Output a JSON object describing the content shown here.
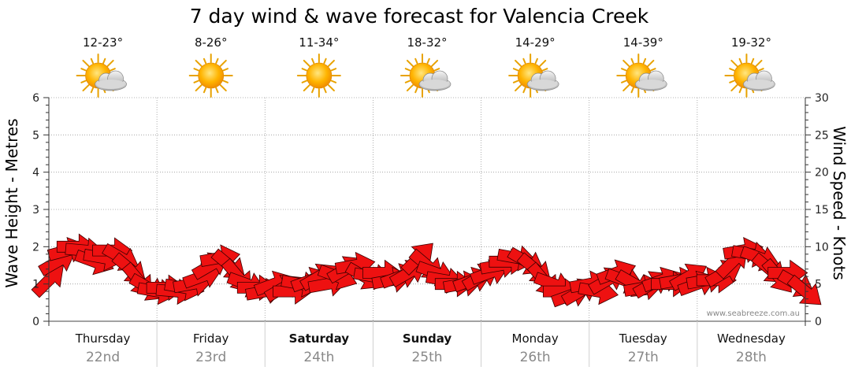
{
  "chart_data": {
    "type": "line",
    "title": "7 day wind & wave forecast for Valencia Creek",
    "ylabel_left": "Wave Height - Metres",
    "ylabel_right": "Wind Speed - Knots",
    "left_axis": {
      "min": 0,
      "max": 6,
      "ticks": [
        "0",
        "1",
        "2",
        "3",
        "4",
        "5",
        "6"
      ]
    },
    "right_axis": {
      "min": 0,
      "max": 30,
      "ticks": [
        "0",
        "5",
        "10",
        "15",
        "20",
        "25",
        "30"
      ]
    },
    "watermark": "www.seabreeze.com.au",
    "days": [
      {
        "name": "Thursday",
        "date": "22nd",
        "bold": false,
        "temp": "12-23°",
        "icon": "partly-cloudy-icon"
      },
      {
        "name": "Friday",
        "date": "23rd",
        "bold": false,
        "temp": "8-26°",
        "icon": "sunny-icon"
      },
      {
        "name": "Saturday",
        "date": "24th",
        "bold": true,
        "temp": "11-34°",
        "icon": "sunny-icon"
      },
      {
        "name": "Sunday",
        "date": "25th",
        "bold": true,
        "temp": "18-32°",
        "icon": "partly-cloudy-icon"
      },
      {
        "name": "Monday",
        "date": "26th",
        "bold": false,
        "temp": "14-29°",
        "icon": "partly-cloudy-icon"
      },
      {
        "name": "Tuesday",
        "date": "27th",
        "bold": false,
        "temp": "14-39°",
        "icon": "partly-cloudy-icon"
      },
      {
        "name": "Wednesday",
        "date": "28th",
        "bold": false,
        "temp": "19-32°",
        "icon": "partly-cloudy-icon"
      }
    ],
    "series": [
      {
        "name": "Wind Speed (knots) with direction arrows",
        "x_days": [
          0,
          0.08,
          0.17,
          0.25,
          0.33,
          0.42,
          0.5,
          0.58,
          0.67,
          0.75,
          0.83,
          0.92,
          1,
          1.08,
          1.17,
          1.25,
          1.33,
          1.42,
          1.5,
          1.58,
          1.67,
          1.75,
          1.83,
          1.92,
          2,
          2.08,
          2.17,
          2.25,
          2.33,
          2.42,
          2.5,
          2.58,
          2.67,
          2.75,
          2.83,
          2.92,
          3,
          3.08,
          3.17,
          3.25,
          3.33,
          3.42,
          3.5,
          3.58,
          3.67,
          3.75,
          3.83,
          3.92,
          4,
          4.08,
          4.17,
          4.25,
          4.33,
          4.42,
          4.5,
          4.58,
          4.67,
          4.75,
          4.83,
          4.92,
          5,
          5.08,
          5.17,
          5.25,
          5.33,
          5.42,
          5.5,
          5.58,
          5.67,
          5.75,
          5.83,
          5.92,
          6,
          6.08,
          6.17,
          6.25,
          6.33,
          6.42,
          6.5,
          6.58,
          6.67,
          6.75,
          6.83,
          6.92,
          7.0
        ],
        "values": [
          5.5,
          8.0,
          9.5,
          10.0,
          9.5,
          8.0,
          8.5,
          9.5,
          8.5,
          7.0,
          5.5,
          4.5,
          4.0,
          4.5,
          4.0,
          4.5,
          5.0,
          6.0,
          7.5,
          8.5,
          7.5,
          6.0,
          5.0,
          4.5,
          4.0,
          5.0,
          4.5,
          4.0,
          5.0,
          5.5,
          6.0,
          5.0,
          6.0,
          7.0,
          7.5,
          6.0,
          6.0,
          6.5,
          5.5,
          6.0,
          6.5,
          8.5,
          7.5,
          6.5,
          5.5,
          5.0,
          5.0,
          5.5,
          6.0,
          6.5,
          7.5,
          8.0,
          8.5,
          8.0,
          7.0,
          5.5,
          5.0,
          4.0,
          3.5,
          4.0,
          5.0,
          4.0,
          5.5,
          6.5,
          5.5,
          5.0,
          4.5,
          5.0,
          5.5,
          5.0,
          5.5,
          6.0,
          5.0,
          5.5,
          5.5,
          6.5,
          8.0,
          9.5,
          9.0,
          8.5,
          7.0,
          6.0,
          6.5,
          5.0,
          4.0
        ],
        "directions_deg": [
          45,
          60,
          75,
          90,
          95,
          110,
          100,
          90,
          120,
          130,
          140,
          120,
          100,
          90,
          95,
          100,
          80,
          70,
          60,
          80,
          130,
          140,
          110,
          90,
          80,
          70,
          60,
          90,
          100,
          70,
          60,
          80,
          110,
          60,
          80,
          120,
          100,
          90,
          80,
          70,
          60,
          45,
          130,
          110,
          100,
          90,
          80,
          70,
          60,
          70,
          80,
          90,
          100,
          120,
          130,
          140,
          110,
          90,
          70,
          60,
          80,
          100,
          60,
          70,
          110,
          120,
          80,
          60,
          70,
          90,
          80,
          60,
          70,
          80,
          90,
          60,
          45,
          80,
          100,
          110,
          130,
          140,
          90,
          120,
          130
        ]
      }
    ]
  }
}
